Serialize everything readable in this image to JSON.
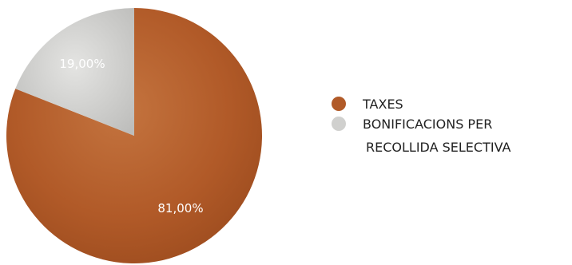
{
  "chart_data": {
    "type": "pie",
    "slices": [
      {
        "name": "TAXES",
        "value": 81.0,
        "label": "81,00%",
        "color": "#b15a28"
      },
      {
        "name": "BONIFICACIONS PER RECOLLIDA SELECTIVA",
        "value": 19.0,
        "label": "19,00%",
        "color": "#d0d0ce"
      }
    ],
    "start_angle_deg": 0,
    "direction": "clockwise",
    "legend": {
      "placement": "right",
      "items": [
        {
          "lines": [
            "TAXES"
          ],
          "color": "#b15a28"
        },
        {
          "lines": [
            "BONIFICACIONS PER",
            "RECOLLIDA SELECTIVA"
          ],
          "color": "#d0d0ce"
        }
      ]
    }
  }
}
